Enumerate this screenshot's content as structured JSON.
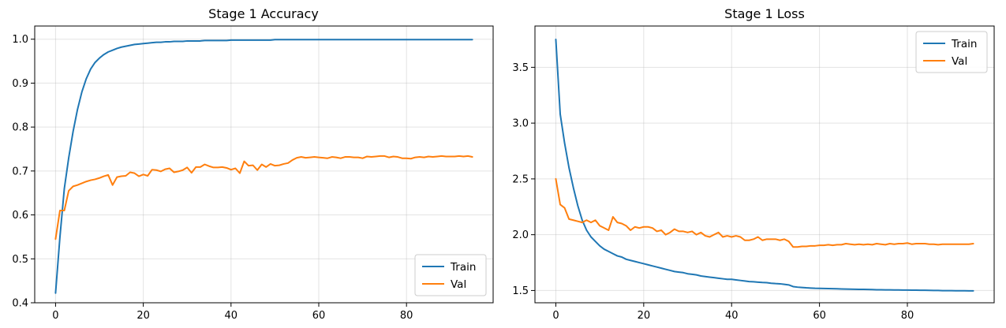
{
  "chart_data": [
    {
      "type": "line",
      "title": "Stage 1 Accuracy",
      "xlabel": "",
      "ylabel": "",
      "xlim": [
        -4.75,
        99.75
      ],
      "ylim": [
        0.4,
        1.03
      ],
      "xticks": [
        0,
        20,
        40,
        60,
        80
      ],
      "yticks": [
        0.4,
        0.5,
        0.6,
        0.7,
        0.8,
        0.9,
        1.0
      ],
      "ytick_labels": [
        "0.4",
        "0.5",
        "0.6",
        "0.7",
        "0.8",
        "0.9",
        "1.0"
      ],
      "grid": true,
      "legend_position": "bottom-right",
      "series": [
        {
          "name": "Train",
          "color": "#1f77b4",
          "x": [
            0,
            1,
            2,
            3,
            4,
            5,
            6,
            7,
            8,
            9,
            10,
            11,
            12,
            13,
            14,
            15,
            16,
            17,
            18,
            19,
            20,
            21,
            22,
            23,
            24,
            25,
            26,
            27,
            28,
            29,
            30,
            31,
            32,
            33,
            34,
            35,
            36,
            37,
            38,
            39,
            40,
            41,
            42,
            43,
            44,
            45,
            46,
            47,
            48,
            49,
            50,
            51,
            52,
            53,
            54,
            55,
            56,
            57,
            58,
            59,
            60,
            61,
            62,
            63,
            64,
            65,
            66,
            67,
            68,
            69,
            70,
            71,
            72,
            73,
            74,
            75,
            76,
            77,
            78,
            79,
            80,
            81,
            82,
            83,
            84,
            85,
            86,
            87,
            88,
            89,
            90,
            91,
            92,
            93,
            94,
            95
          ],
          "values": [
            0.422,
            0.55,
            0.66,
            0.73,
            0.79,
            0.84,
            0.88,
            0.91,
            0.932,
            0.947,
            0.957,
            0.965,
            0.971,
            0.975,
            0.979,
            0.982,
            0.984,
            0.986,
            0.988,
            0.989,
            0.99,
            0.991,
            0.992,
            0.993,
            0.993,
            0.994,
            0.994,
            0.995,
            0.995,
            0.995,
            0.996,
            0.996,
            0.996,
            0.996,
            0.997,
            0.997,
            0.997,
            0.997,
            0.997,
            0.997,
            0.998,
            0.998,
            0.998,
            0.998,
            0.998,
            0.998,
            0.998,
            0.998,
            0.998,
            0.998,
            0.999,
            0.999,
            0.999,
            0.999,
            0.999,
            0.999,
            0.999,
            0.999,
            0.999,
            0.999,
            0.999,
            0.999,
            0.999,
            0.999,
            0.999,
            0.999,
            0.999,
            0.999,
            0.999,
            0.999,
            0.999,
            0.999,
            0.999,
            0.999,
            0.999,
            0.999,
            0.999,
            0.999,
            0.999,
            0.999,
            0.999,
            0.999,
            0.999,
            0.999,
            0.999,
            0.999,
            0.999,
            0.999,
            0.999,
            0.999,
            0.999,
            0.999,
            0.999,
            0.999,
            0.999,
            0.999
          ]
        },
        {
          "name": "Val",
          "color": "#ff7f0e",
          "x": [
            0,
            1,
            2,
            3,
            4,
            5,
            6,
            7,
            8,
            9,
            10,
            11,
            12,
            13,
            14,
            15,
            16,
            17,
            18,
            19,
            20,
            21,
            22,
            23,
            24,
            25,
            26,
            27,
            28,
            29,
            30,
            31,
            32,
            33,
            34,
            35,
            36,
            37,
            38,
            39,
            40,
            41,
            42,
            43,
            44,
            45,
            46,
            47,
            48,
            49,
            50,
            51,
            52,
            53,
            54,
            55,
            56,
            57,
            58,
            59,
            60,
            61,
            62,
            63,
            64,
            65,
            66,
            67,
            68,
            69,
            70,
            71,
            72,
            73,
            74,
            75,
            76,
            77,
            78,
            79,
            80,
            81,
            82,
            83,
            84,
            85,
            86,
            87,
            88,
            89,
            90,
            91,
            92,
            93,
            94,
            95
          ],
          "values": [
            0.545,
            0.61,
            0.61,
            0.655,
            0.665,
            0.668,
            0.672,
            0.676,
            0.679,
            0.681,
            0.684,
            0.688,
            0.691,
            0.668,
            0.686,
            0.688,
            0.689,
            0.697,
            0.695,
            0.688,
            0.692,
            0.689,
            0.703,
            0.702,
            0.699,
            0.704,
            0.706,
            0.697,
            0.699,
            0.702,
            0.708,
            0.696,
            0.709,
            0.709,
            0.715,
            0.711,
            0.708,
            0.708,
            0.709,
            0.707,
            0.703,
            0.706,
            0.695,
            0.722,
            0.712,
            0.713,
            0.702,
            0.715,
            0.709,
            0.716,
            0.712,
            0.713,
            0.716,
            0.718,
            0.725,
            0.73,
            0.732,
            0.73,
            0.731,
            0.732,
            0.731,
            0.73,
            0.729,
            0.732,
            0.731,
            0.729,
            0.732,
            0.732,
            0.731,
            0.731,
            0.729,
            0.733,
            0.732,
            0.733,
            0.734,
            0.734,
            0.731,
            0.733,
            0.732,
            0.729,
            0.729,
            0.728,
            0.731,
            0.732,
            0.731,
            0.733,
            0.732,
            0.733,
            0.734,
            0.733,
            0.733,
            0.733,
            0.734,
            0.733,
            0.734,
            0.732
          ]
        }
      ]
    },
    {
      "type": "line",
      "title": "Stage 1 Loss",
      "xlabel": "",
      "ylabel": "",
      "xlim": [
        -4.75,
        99.75
      ],
      "ylim": [
        1.39,
        3.87
      ],
      "xticks": [
        0,
        20,
        40,
        60,
        80
      ],
      "yticks": [
        1.5,
        2.0,
        2.5,
        3.0,
        3.5
      ],
      "ytick_labels": [
        "1.5",
        "2.0",
        "2.5",
        "3.0",
        "3.5"
      ],
      "grid": true,
      "legend_position": "top-right",
      "series": [
        {
          "name": "Train",
          "color": "#1f77b4",
          "x": [
            0,
            1,
            2,
            3,
            4,
            5,
            6,
            7,
            8,
            9,
            10,
            11,
            12,
            13,
            14,
            15,
            16,
            17,
            18,
            19,
            20,
            21,
            22,
            23,
            24,
            25,
            26,
            27,
            28,
            29,
            30,
            31,
            32,
            33,
            34,
            35,
            36,
            37,
            38,
            39,
            40,
            41,
            42,
            43,
            44,
            45,
            46,
            47,
            48,
            49,
            50,
            51,
            52,
            53,
            54,
            55,
            56,
            57,
            58,
            59,
            60,
            61,
            62,
            63,
            64,
            65,
            66,
            67,
            68,
            69,
            70,
            71,
            72,
            73,
            74,
            75,
            76,
            77,
            78,
            79,
            80,
            81,
            82,
            83,
            84,
            85,
            86,
            87,
            88,
            89,
            90,
            91,
            92,
            93,
            94,
            95
          ],
          "values": [
            3.75,
            3.08,
            2.82,
            2.6,
            2.42,
            2.26,
            2.13,
            2.04,
            1.98,
            1.94,
            1.9,
            1.87,
            1.85,
            1.83,
            1.81,
            1.8,
            1.78,
            1.77,
            1.76,
            1.75,
            1.74,
            1.73,
            1.72,
            1.71,
            1.7,
            1.69,
            1.68,
            1.67,
            1.665,
            1.66,
            1.65,
            1.645,
            1.64,
            1.63,
            1.625,
            1.62,
            1.615,
            1.61,
            1.605,
            1.6,
            1.6,
            1.595,
            1.59,
            1.585,
            1.58,
            1.578,
            1.575,
            1.572,
            1.57,
            1.565,
            1.562,
            1.56,
            1.555,
            1.55,
            1.535,
            1.53,
            1.527,
            1.524,
            1.522,
            1.52,
            1.519,
            1.518,
            1.517,
            1.516,
            1.515,
            1.514,
            1.513,
            1.512,
            1.511,
            1.51,
            1.51,
            1.509,
            1.508,
            1.507,
            1.507,
            1.506,
            1.506,
            1.505,
            1.505,
            1.504,
            1.504,
            1.503,
            1.503,
            1.502,
            1.502,
            1.501,
            1.5,
            1.5,
            1.499,
            1.499,
            1.499,
            1.498,
            1.498,
            1.498,
            1.497,
            1.497
          ]
        },
        {
          "name": "Val",
          "color": "#ff7f0e",
          "x": [
            0,
            1,
            2,
            3,
            4,
            5,
            6,
            7,
            8,
            9,
            10,
            11,
            12,
            13,
            14,
            15,
            16,
            17,
            18,
            19,
            20,
            21,
            22,
            23,
            24,
            25,
            26,
            27,
            28,
            29,
            30,
            31,
            32,
            33,
            34,
            35,
            36,
            37,
            38,
            39,
            40,
            41,
            42,
            43,
            44,
            45,
            46,
            47,
            48,
            49,
            50,
            51,
            52,
            53,
            54,
            55,
            56,
            57,
            58,
            59,
            60,
            61,
            62,
            63,
            64,
            65,
            66,
            67,
            68,
            69,
            70,
            71,
            72,
            73,
            74,
            75,
            76,
            77,
            78,
            79,
            80,
            81,
            82,
            83,
            84,
            85,
            86,
            87,
            88,
            89,
            90,
            91,
            92,
            93,
            94,
            95
          ],
          "values": [
            2.5,
            2.27,
            2.24,
            2.14,
            2.13,
            2.12,
            2.11,
            2.13,
            2.11,
            2.13,
            2.08,
            2.06,
            2.04,
            2.16,
            2.11,
            2.1,
            2.08,
            2.04,
            2.07,
            2.06,
            2.07,
            2.07,
            2.06,
            2.03,
            2.04,
            2.0,
            2.02,
            2.05,
            2.03,
            2.03,
            2.02,
            2.03,
            2.0,
            2.02,
            1.99,
            1.98,
            2.0,
            2.02,
            1.98,
            1.99,
            1.98,
            1.99,
            1.98,
            1.95,
            1.95,
            1.96,
            1.98,
            1.95,
            1.96,
            1.96,
            1.96,
            1.95,
            1.96,
            1.94,
            1.89,
            1.89,
            1.895,
            1.895,
            1.9,
            1.9,
            1.905,
            1.905,
            1.91,
            1.905,
            1.91,
            1.91,
            1.92,
            1.915,
            1.91,
            1.915,
            1.91,
            1.915,
            1.91,
            1.92,
            1.915,
            1.91,
            1.92,
            1.915,
            1.92,
            1.92,
            1.925,
            1.915,
            1.92,
            1.92,
            1.92,
            1.915,
            1.915,
            1.91,
            1.915,
            1.915,
            1.915,
            1.915,
            1.915,
            1.915,
            1.915,
            1.92
          ]
        }
      ]
    }
  ]
}
